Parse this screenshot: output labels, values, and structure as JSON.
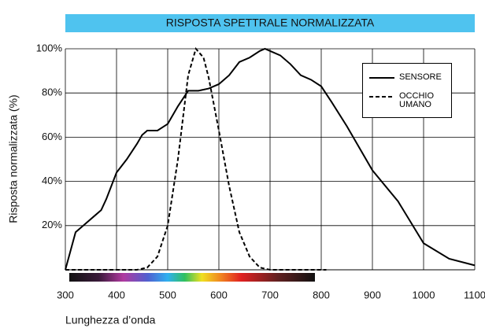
{
  "chart_data": {
    "type": "line",
    "title": "RISPOSTA SPETTRALE NORMALIZZATA",
    "xlabel": "Lunghezza d’onda",
    "ylabel": "Risposta normalizzata (%)",
    "xlim": [
      300,
      1100
    ],
    "xticks": [
      300,
      400,
      500,
      600,
      700,
      800,
      900,
      1000,
      1100
    ],
    "ylim": [
      0,
      100
    ],
    "yticks": [
      {
        "value": 20,
        "label": "20%"
      },
      {
        "value": 40,
        "label": "40%"
      },
      {
        "value": 60,
        "label": "60%"
      },
      {
        "value": 80,
        "label": "80%"
      },
      {
        "value": 100,
        "label": "100%"
      }
    ],
    "grid": true,
    "legend": "upper right",
    "series": [
      {
        "name": "SENSORE",
        "color": "#000000",
        "style": "solid",
        "x": [
          300,
          320,
          340,
          355,
          370,
          380,
          400,
          420,
          440,
          450,
          460,
          480,
          500,
          520,
          540,
          560,
          580,
          600,
          620,
          640,
          660,
          680,
          690,
          700,
          720,
          740,
          760,
          780,
          800,
          820,
          850,
          900,
          950,
          1000,
          1050,
          1100
        ],
        "values": [
          0,
          17,
          21,
          24,
          27,
          32,
          44,
          50,
          57,
          61,
          63,
          63,
          66,
          74,
          81,
          81,
          82,
          84,
          88,
          94,
          96,
          99,
          100,
          99,
          97,
          93,
          88,
          86,
          83,
          76,
          65,
          45,
          31,
          12,
          5,
          2
        ]
      },
      {
        "name": "OCCHIO UMANO",
        "color": "#000000",
        "style": "dashed",
        "x": [
          300,
          440,
          460,
          480,
          500,
          520,
          540,
          555,
          570,
          580,
          600,
          620,
          640,
          660,
          680,
          700,
          810
        ],
        "values": [
          0,
          0,
          1,
          6,
          20,
          50,
          88,
          100,
          96,
          87,
          63,
          38,
          17,
          6,
          1,
          0,
          0
        ]
      }
    ]
  }
}
